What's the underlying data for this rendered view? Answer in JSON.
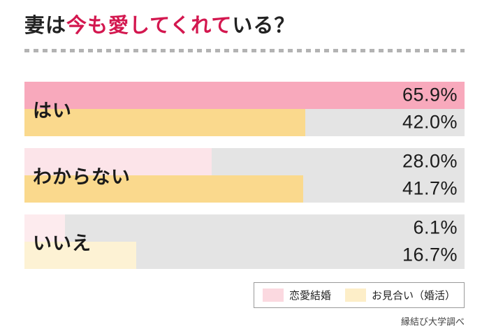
{
  "title": {
    "pre": "妻は",
    "highlight": "今も愛してくれて",
    "post": "いる？"
  },
  "colors": {
    "title_highlight": "#d3174f",
    "track": "#e4e4e4",
    "text": "#1b1b1b"
  },
  "chart_data": {
    "type": "bar",
    "orientation": "horizontal",
    "title": "妻は今も愛してくれている？",
    "categories": [
      "はい",
      "わからない",
      "いいえ"
    ],
    "series": [
      {
        "name": "恋愛結婚",
        "values": [
          65.9,
          28.0,
          6.1
        ]
      },
      {
        "name": "お見合い（婚活）",
        "values": [
          42.0,
          41.7,
          16.7
        ]
      }
    ],
    "value_labels": [
      [
        "65.9%",
        "28.0%",
        "6.1%"
      ],
      [
        "42.0%",
        "41.7%",
        "16.7%"
      ]
    ],
    "unit": "%",
    "scale_max": 65.9,
    "bar_colors": [
      [
        "#f8a9bc",
        "#fce4e9",
        "#fdebee"
      ],
      [
        "#fad98d",
        "#fad98d",
        "#fdf2d4"
      ]
    ],
    "grid": false,
    "legend_position": "bottom-right"
  },
  "legend": {
    "items": [
      {
        "label": "恋愛結婚",
        "color": "#fbd9e0"
      },
      {
        "label": "お見合い（婚活）",
        "color": "#fdeec8"
      }
    ]
  },
  "source": "縁結び大学調べ"
}
